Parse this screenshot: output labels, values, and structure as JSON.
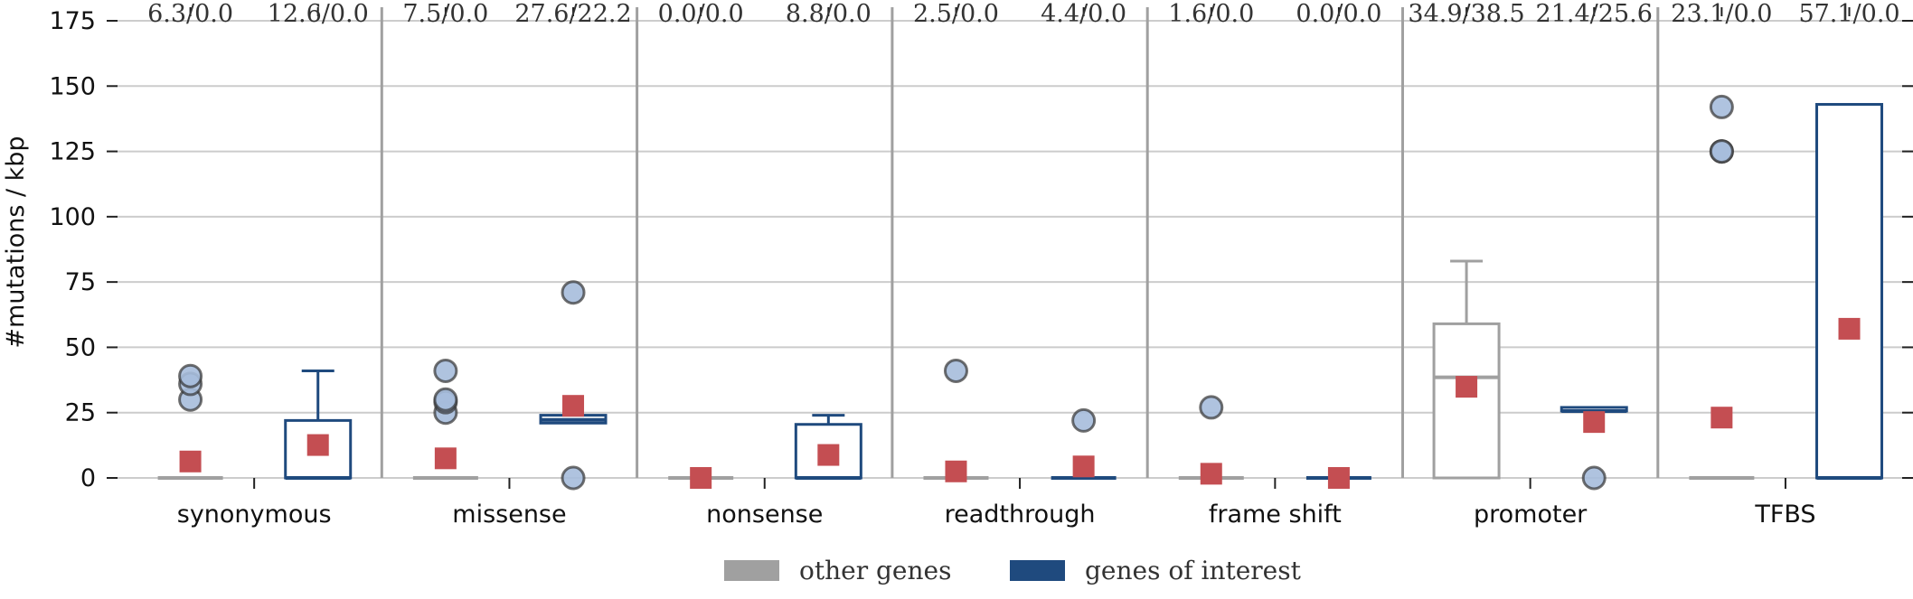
{
  "chart_data": {
    "type": "box",
    "ylabel": "#mutations / kbp",
    "ylim": [
      0,
      175
    ],
    "yticks": [
      0,
      25,
      50,
      75,
      100,
      125,
      150,
      175
    ],
    "grid": true,
    "legend_placement": "bottom-center",
    "categories": [
      "synonymous",
      "missense",
      "nonsense",
      "readthrough",
      "frame shift",
      "promoter",
      "TFBS"
    ],
    "series": [
      {
        "name": "other genes",
        "color": "#a0a0a0"
      },
      {
        "name": "genes of interest",
        "color": "#1f4a7e"
      }
    ],
    "mean_marker_color": "#c44e52",
    "outlier_fill_color": "#a6bddb",
    "groups": [
      {
        "series": "other genes",
        "category": "synonymous",
        "top_label": "6.3/0.0",
        "box": {
          "q1": 0,
          "median": 0,
          "q3": 0,
          "whisker_low": 0,
          "whisker_high": 0
        },
        "mean": 6.3,
        "outliers": [
          30,
          36,
          39
        ]
      },
      {
        "series": "genes of interest",
        "category": "synonymous",
        "top_label": "12.6/0.0",
        "box": {
          "q1": 0,
          "median": 0,
          "q3": 22,
          "whisker_low": 0,
          "whisker_high": 41
        },
        "mean": 12.6,
        "outliers": []
      },
      {
        "series": "other genes",
        "category": "missense",
        "top_label": "7.5/0.0",
        "box": {
          "q1": 0,
          "median": 0,
          "q3": 0,
          "whisker_low": 0,
          "whisker_high": 0
        },
        "mean": 7.5,
        "outliers": [
          25,
          29,
          30,
          41
        ]
      },
      {
        "series": "genes of interest",
        "category": "missense",
        "top_label": "27.6/22.2",
        "box": {
          "q1": 21,
          "median": 22.2,
          "q3": 24,
          "whisker_low": 21,
          "whisker_high": 24
        },
        "mean": 27.6,
        "outliers": [
          0,
          71
        ]
      },
      {
        "series": "other genes",
        "category": "nonsense",
        "top_label": "0.0/0.0",
        "box": {
          "q1": 0,
          "median": 0,
          "q3": 0,
          "whisker_low": 0,
          "whisker_high": 0
        },
        "mean": 0.0,
        "outliers": []
      },
      {
        "series": "genes of interest",
        "category": "nonsense",
        "top_label": "8.8/0.0",
        "box": {
          "q1": 0,
          "median": 0,
          "q3": 20.5,
          "whisker_low": 0,
          "whisker_high": 24
        },
        "mean": 8.8,
        "outliers": []
      },
      {
        "series": "other genes",
        "category": "readthrough",
        "top_label": "2.5/0.0",
        "box": {
          "q1": 0,
          "median": 0,
          "q3": 0,
          "whisker_low": 0,
          "whisker_high": 0
        },
        "mean": 2.5,
        "outliers": [
          41
        ]
      },
      {
        "series": "genes of interest",
        "category": "readthrough",
        "top_label": "4.4/0.0",
        "box": {
          "q1": 0,
          "median": 0,
          "q3": 0,
          "whisker_low": 0,
          "whisker_high": 0
        },
        "mean": 4.4,
        "outliers": [
          22
        ]
      },
      {
        "series": "other genes",
        "category": "frame shift",
        "top_label": "1.6/0.0",
        "box": {
          "q1": 0,
          "median": 0,
          "q3": 0,
          "whisker_low": 0,
          "whisker_high": 0
        },
        "mean": 1.6,
        "outliers": [
          27
        ]
      },
      {
        "series": "genes of interest",
        "category": "frame shift",
        "top_label": "0.0/0.0",
        "box": {
          "q1": 0,
          "median": 0,
          "q3": 0,
          "whisker_low": 0,
          "whisker_high": 0
        },
        "mean": 0.0,
        "outliers": []
      },
      {
        "series": "other genes",
        "category": "promoter",
        "top_label": "34.9/38.5",
        "box": {
          "q1": 0,
          "median": 38.5,
          "q3": 59,
          "whisker_low": 0,
          "whisker_high": 83
        },
        "mean": 34.9,
        "outliers": []
      },
      {
        "series": "genes of interest",
        "category": "promoter",
        "top_label": "21.4/25.6",
        "box": {
          "q1": 25.6,
          "median": 25.6,
          "q3": 27,
          "whisker_low": 25.6,
          "whisker_high": 27
        },
        "mean": 21.4,
        "outliers": [
          0
        ]
      },
      {
        "series": "other genes",
        "category": "TFBS",
        "top_label": "23.1/0.0",
        "box": {
          "q1": 0,
          "median": 0,
          "q3": 0,
          "whisker_low": 0,
          "whisker_high": 0
        },
        "mean": 23.1,
        "outliers": [
          125,
          125,
          142
        ]
      },
      {
        "series": "genes of interest",
        "category": "TFBS",
        "top_label": "57.1/0.0",
        "box": {
          "q1": 0,
          "median": 0,
          "q3": 143,
          "whisker_low": 0,
          "whisker_high": 143
        },
        "mean": 57.1,
        "outliers": []
      }
    ]
  }
}
